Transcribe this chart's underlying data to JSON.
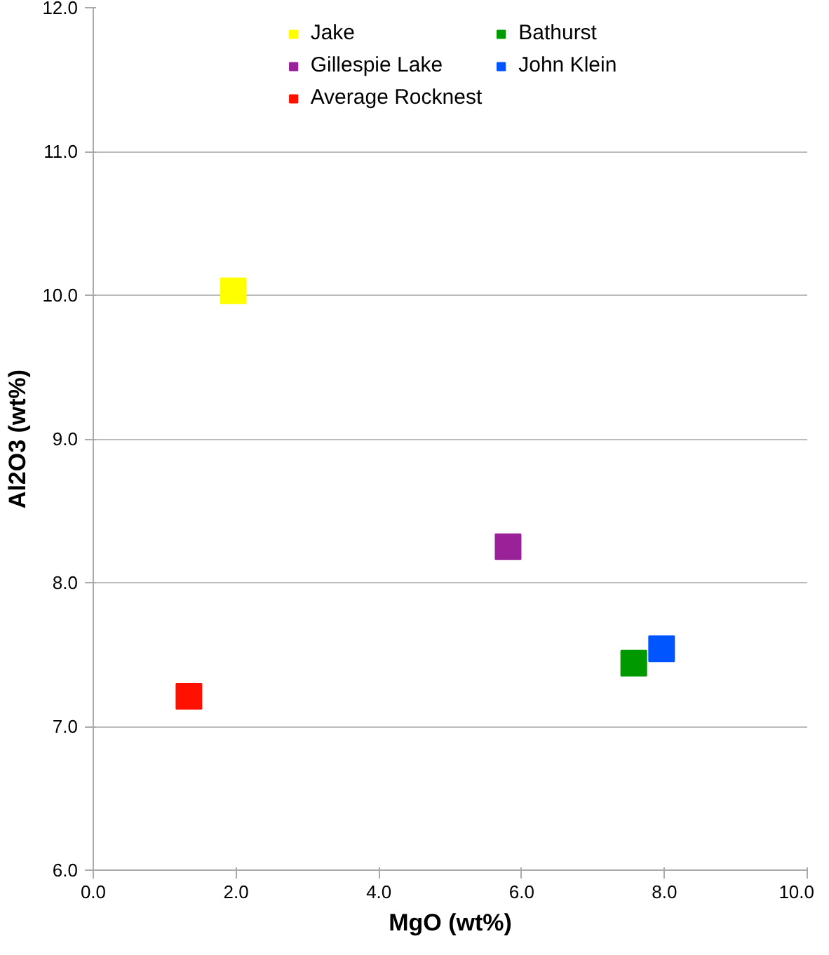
{
  "chart_data": {
    "type": "scatter",
    "xlabel": "MgO (wt%)",
    "ylabel": "Al2O3 (wt%)",
    "xlim": [
      0,
      10
    ],
    "xticks": [
      {
        "value": 0,
        "label": "0.0"
      },
      {
        "value": 2,
        "label": "2.0"
      },
      {
        "value": 4,
        "label": "4.0"
      },
      {
        "value": 6,
        "label": "6.0"
      },
      {
        "value": 8,
        "label": "8.0"
      },
      {
        "value": 10,
        "label": "10.0"
      }
    ],
    "ylim": [
      6,
      12
    ],
    "yticks": [
      {
        "value": 6,
        "label": "6.0"
      },
      {
        "value": 7,
        "label": "7.0"
      },
      {
        "value": 8,
        "label": "8.0"
      },
      {
        "value": 9,
        "label": "9.0"
      },
      {
        "value": 10,
        "label": "10.0"
      },
      {
        "value": 11,
        "label": "11.0"
      },
      {
        "value": 12,
        "label": "12.0"
      }
    ],
    "grid": "y",
    "legend": "top",
    "marker": "square",
    "series": [
      {
        "name": "Jake",
        "color": "#ffff00",
        "x": [
          1.96
        ],
        "values": [
          10.03
        ]
      },
      {
        "name": "Bathurst",
        "color": "#009900",
        "x": [
          7.57
        ],
        "values": [
          7.44
        ]
      },
      {
        "name": "Gillespie Lake",
        "color": "#992299",
        "x": [
          5.81
        ],
        "values": [
          8.25
        ]
      },
      {
        "name": "John Klein",
        "color": "#0055ff",
        "x": [
          7.96
        ],
        "values": [
          7.54
        ]
      },
      {
        "name": "Average Rocknest",
        "color": "#ff1100",
        "x": [
          1.34
        ],
        "values": [
          7.21
        ]
      }
    ]
  }
}
